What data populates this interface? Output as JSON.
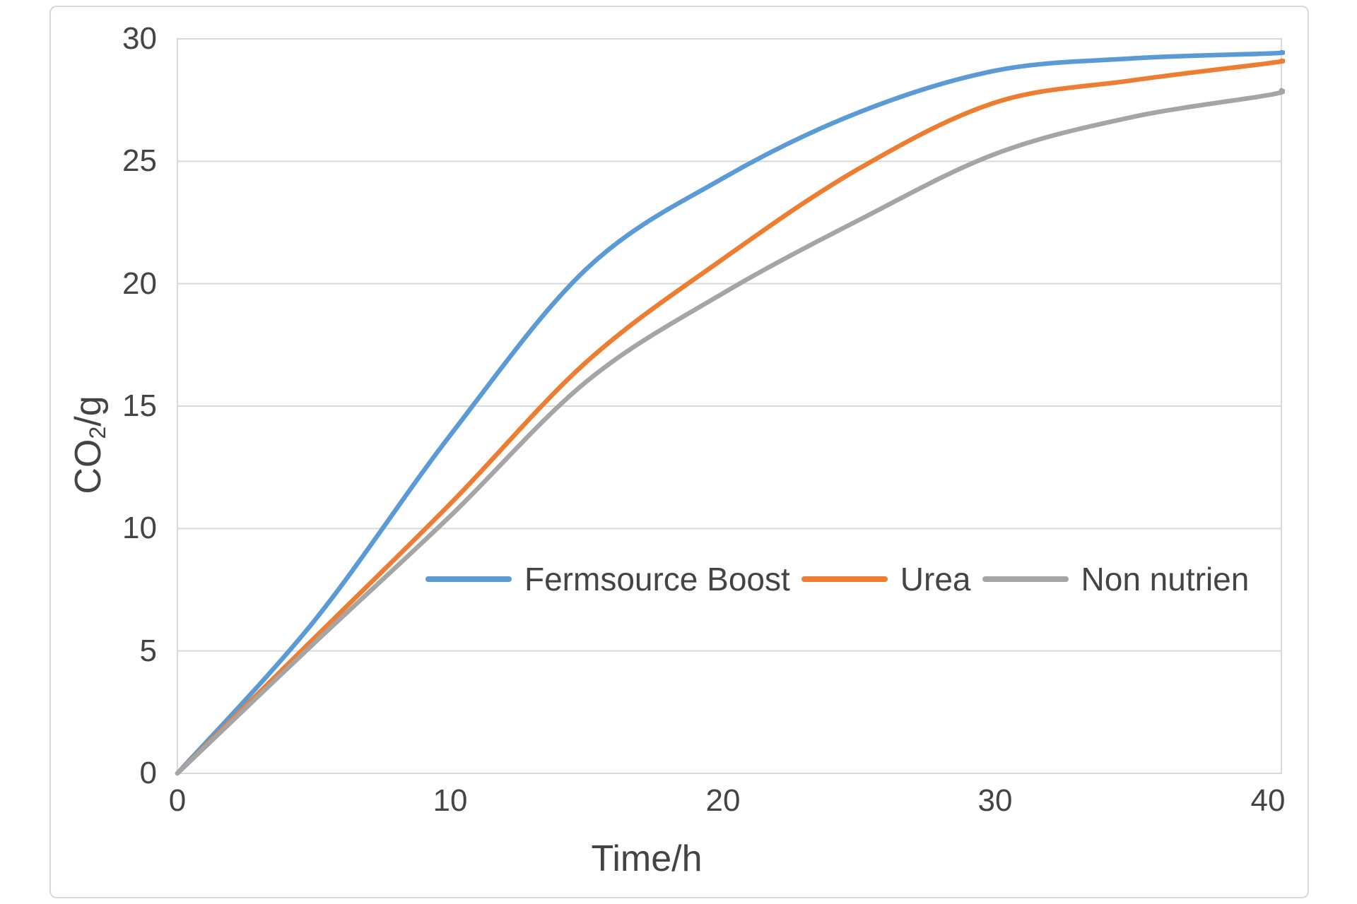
{
  "chart_data": {
    "type": "line",
    "title": "",
    "xlabel": "Time/h",
    "ylabel": "CO2/g",
    "ylabel_parts": {
      "main": "CO",
      "sub": "2",
      "unit": "/g"
    },
    "x": [
      0,
      5,
      10,
      15,
      20,
      25,
      30,
      35,
      40,
      40.5
    ],
    "series": [
      {
        "name": "Fermsource Boost",
        "color": "#5B9BD5",
        "values": [
          0,
          6.2,
          13.8,
          20.6,
          24.3,
          27.0,
          28.7,
          29.2,
          29.4,
          29.45
        ]
      },
      {
        "name": "Urea",
        "color": "#ED7D31",
        "values": [
          0,
          5.5,
          11.0,
          16.8,
          21.0,
          24.7,
          27.4,
          28.3,
          29.0,
          29.1
        ]
      },
      {
        "name": "Non nutrien",
        "color": "#A5A5A5",
        "values": [
          0,
          5.3,
          10.5,
          16.0,
          19.6,
          22.6,
          25.3,
          26.8,
          27.7,
          27.9
        ]
      }
    ],
    "xlim": [
      0,
      40.5
    ],
    "ylim": [
      0,
      30
    ],
    "xticks": [
      "0",
      "10",
      "20",
      "30",
      "40"
    ],
    "yticks": [
      "0",
      "5",
      "10",
      "15",
      "20",
      "25",
      "30"
    ],
    "grid": "horizontal",
    "legend_position": "inside-plot-middle",
    "line_smoothing": true
  },
  "colors": {
    "grid": "#D9D9D9",
    "plot_border": "#D9D9D9",
    "frame_border": "#D9D9D9",
    "axis_text": "#444444",
    "background": "#FFFFFF"
  }
}
